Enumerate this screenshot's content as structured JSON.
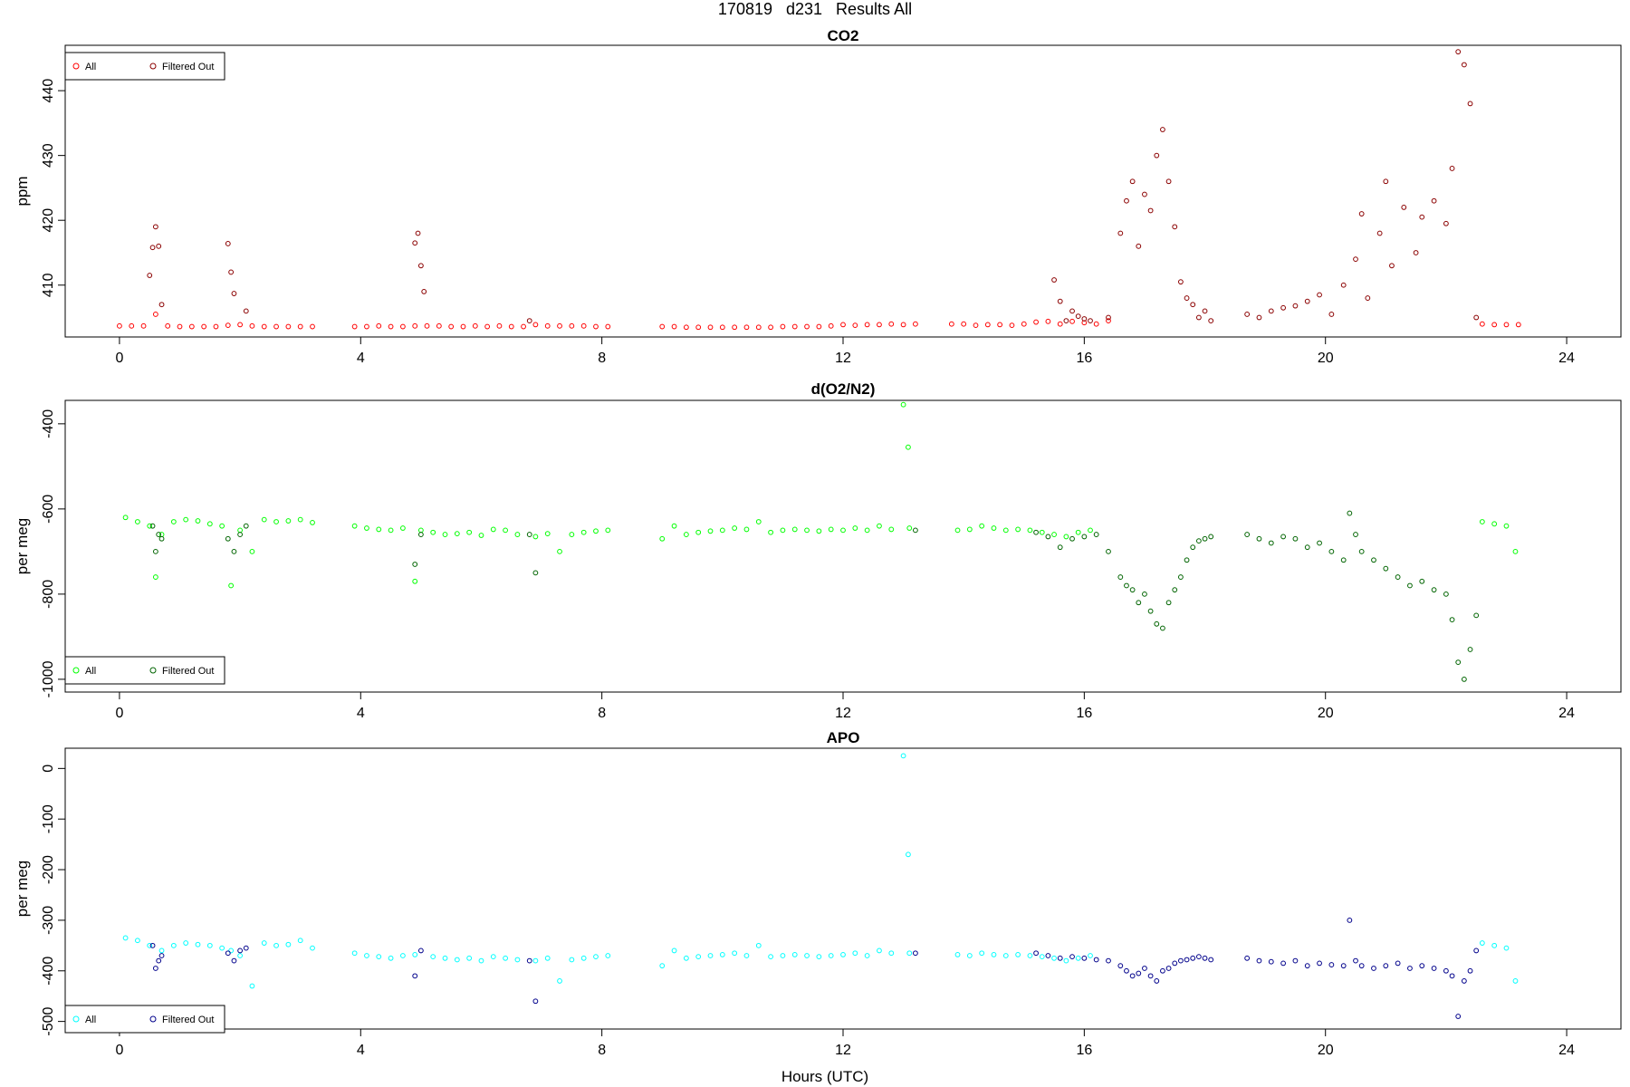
{
  "figure": {
    "title": "170819   d231   Results All",
    "xlabel": "Hours (UTC)"
  },
  "chart_data": [
    {
      "type": "scatter",
      "title": "CO2",
      "xlabel": "",
      "ylabel": "ppm",
      "xlim": [
        -0.9,
        24.9
      ],
      "ylim": [
        402,
        447
      ],
      "xticks": [
        0,
        4,
        8,
        12,
        16,
        20,
        24
      ],
      "yticks": [
        410,
        420,
        430,
        440
      ],
      "legend_position": "top-left",
      "legend": [
        {
          "label": "All",
          "color": "#ff0000"
        },
        {
          "label": "Filtered Out",
          "color": "#8b0000"
        }
      ],
      "series": [
        {
          "name": "All",
          "color": "#ff0000",
          "x": [
            0.0,
            0.2,
            0.4,
            0.6,
            0.8,
            1.0,
            1.2,
            1.4,
            1.6,
            1.8,
            2.0,
            2.2,
            2.4,
            2.6,
            2.8,
            3.0,
            3.2,
            3.9,
            4.1,
            4.3,
            4.5,
            4.7,
            4.9,
            5.1,
            5.3,
            5.5,
            5.7,
            5.9,
            6.1,
            6.3,
            6.5,
            6.7,
            6.9,
            7.1,
            7.3,
            7.5,
            7.7,
            7.9,
            8.1,
            9.0,
            9.2,
            9.4,
            9.6,
            9.8,
            10.0,
            10.2,
            10.4,
            10.6,
            10.8,
            11.0,
            11.2,
            11.4,
            11.6,
            11.8,
            12.0,
            12.2,
            12.4,
            12.6,
            12.8,
            13.0,
            13.2,
            13.8,
            14.0,
            14.2,
            14.4,
            14.6,
            14.8,
            15.0,
            15.2,
            15.4,
            15.6,
            15.8,
            16.0,
            16.2,
            16.4,
            22.6,
            22.8,
            23.0,
            23.2
          ],
          "values": [
            403.7,
            403.7,
            403.7,
            405.5,
            403.7,
            403.6,
            403.6,
            403.6,
            403.6,
            403.8,
            403.9,
            403.7,
            403.6,
            403.6,
            403.6,
            403.6,
            403.6,
            403.6,
            403.6,
            403.7,
            403.6,
            403.6,
            403.7,
            403.7,
            403.7,
            403.6,
            403.6,
            403.7,
            403.6,
            403.7,
            403.6,
            403.6,
            403.9,
            403.7,
            403.7,
            403.7,
            403.7,
            403.6,
            403.6,
            403.6,
            403.6,
            403.5,
            403.5,
            403.5,
            403.5,
            403.5,
            403.5,
            403.5,
            403.5,
            403.6,
            403.6,
            403.6,
            403.6,
            403.7,
            403.9,
            403.8,
            403.9,
            403.9,
            404.0,
            403.9,
            404.0,
            404.0,
            404.0,
            403.8,
            403.9,
            403.9,
            403.8,
            404.0,
            404.3,
            404.4,
            404.0,
            404.4,
            404.2,
            404.0,
            404.5,
            404.0,
            403.9,
            403.9,
            403.9
          ]
        },
        {
          "name": "Filtered Out",
          "color": "#8b0000",
          "x": [
            0.5,
            0.55,
            0.6,
            0.65,
            0.7,
            1.8,
            1.85,
            1.9,
            2.1,
            4.9,
            4.95,
            5.0,
            5.05,
            6.8,
            15.5,
            15.6,
            15.7,
            15.8,
            15.9,
            16.0,
            16.1,
            16.4,
            16.6,
            16.7,
            16.8,
            16.9,
            17.0,
            17.1,
            17.2,
            17.3,
            17.4,
            17.5,
            17.6,
            17.7,
            17.8,
            17.9,
            18.0,
            18.1,
            18.7,
            18.9,
            19.1,
            19.3,
            19.5,
            19.7,
            19.9,
            20.1,
            20.3,
            20.5,
            20.6,
            20.7,
            20.9,
            21.0,
            21.1,
            21.3,
            21.5,
            21.6,
            21.8,
            22.0,
            22.1,
            22.2,
            22.3,
            22.4,
            22.5
          ],
          "values": [
            411.5,
            415.8,
            419,
            416,
            407,
            416.4,
            412,
            408.7,
            406,
            416.5,
            418,
            413,
            409,
            404.5,
            410.8,
            407.5,
            404.5,
            406,
            405.2,
            404.8,
            404.5,
            405,
            418,
            423,
            426,
            416,
            424,
            421.5,
            430,
            434,
            426,
            419,
            410.5,
            408,
            407,
            405,
            406,
            404.5,
            405.5,
            405,
            406,
            406.5,
            406.8,
            407.5,
            408.5,
            405.5,
            410,
            414,
            421,
            408,
            418,
            426,
            413,
            422,
            415,
            420.5,
            423,
            419.5,
            428,
            446,
            444,
            438,
            405
          ]
        }
      ]
    },
    {
      "type": "scatter",
      "title": "d(O2/N2)",
      "xlabel": "",
      "ylabel": "per meg",
      "xlim": [
        -0.9,
        24.9
      ],
      "ylim": [
        -1030,
        -345
      ],
      "xticks": [
        0,
        4,
        8,
        12,
        16,
        20,
        24
      ],
      "yticks": [
        -1000,
        -800,
        -600,
        -400
      ],
      "legend_position": "bottom-left",
      "legend": [
        {
          "label": "All",
          "color": "#00ff00"
        },
        {
          "label": "Filtered Out",
          "color": "#006400"
        }
      ],
      "series": [
        {
          "name": "All",
          "color": "#00ff00",
          "x": [
            0.1,
            0.3,
            0.5,
            0.6,
            0.7,
            0.9,
            1.1,
            1.3,
            1.5,
            1.7,
            1.85,
            2.0,
            2.2,
            2.4,
            2.6,
            2.8,
            3.0,
            3.2,
            3.9,
            4.1,
            4.3,
            4.5,
            4.7,
            4.9,
            5.0,
            5.2,
            5.4,
            5.6,
            5.8,
            6.0,
            6.2,
            6.4,
            6.6,
            6.9,
            7.1,
            7.3,
            7.5,
            7.7,
            7.9,
            8.1,
            9.0,
            9.2,
            9.4,
            9.6,
            9.8,
            10.0,
            10.2,
            10.4,
            10.6,
            10.8,
            11.0,
            11.2,
            11.4,
            11.6,
            11.8,
            12.0,
            12.2,
            12.4,
            12.6,
            12.8,
            13.0,
            13.08,
            13.1,
            13.9,
            14.1,
            14.3,
            14.5,
            14.7,
            14.9,
            15.1,
            15.3,
            15.5,
            15.7,
            15.9,
            16.1,
            22.6,
            22.8,
            23.0,
            23.15
          ],
          "values": [
            -620,
            -630,
            -640,
            -760,
            -660,
            -630,
            -625,
            -628,
            -635,
            -640,
            -780,
            -650,
            -700,
            -625,
            -630,
            -628,
            -625,
            -632,
            -640,
            -645,
            -648,
            -650,
            -645,
            -770,
            -650,
            -655,
            -660,
            -658,
            -655,
            -662,
            -648,
            -650,
            -660,
            -665,
            -658,
            -700,
            -660,
            -655,
            -652,
            -650,
            -670,
            -640,
            -660,
            -655,
            -652,
            -650,
            -645,
            -648,
            -630,
            -655,
            -650,
            -648,
            -650,
            -652,
            -648,
            -650,
            -645,
            -650,
            -640,
            -648,
            -355,
            -455,
            -645,
            -650,
            -648,
            -640,
            -645,
            -650,
            -648,
            -650,
            -655,
            -660,
            -665,
            -655,
            -650,
            -630,
            -635,
            -640,
            -700
          ]
        },
        {
          "name": "Filtered Out",
          "color": "#006400",
          "x": [
            0.55,
            0.6,
            0.65,
            0.7,
            1.8,
            1.9,
            2.0,
            2.1,
            4.9,
            5.0,
            6.8,
            6.9,
            13.2,
            15.2,
            15.4,
            15.6,
            15.8,
            16.0,
            16.2,
            16.4,
            16.6,
            16.7,
            16.8,
            16.9,
            17.0,
            17.1,
            17.2,
            17.3,
            17.4,
            17.5,
            17.6,
            17.7,
            17.8,
            17.9,
            18.0,
            18.1,
            18.7,
            18.9,
            19.1,
            19.3,
            19.5,
            19.7,
            19.9,
            20.1,
            20.3,
            20.4,
            20.5,
            20.6,
            20.8,
            21.0,
            21.2,
            21.4,
            21.6,
            21.8,
            22.0,
            22.1,
            22.2,
            22.3,
            22.4,
            22.5
          ],
          "values": [
            -640,
            -700,
            -660,
            -670,
            -670,
            -700,
            -660,
            -640,
            -730,
            -660,
            -660,
            -750,
            -650,
            -655,
            -665,
            -690,
            -670,
            -665,
            -660,
            -700,
            -760,
            -780,
            -790,
            -820,
            -800,
            -840,
            -870,
            -880,
            -820,
            -790,
            -760,
            -720,
            -690,
            -675,
            -670,
            -665,
            -660,
            -670,
            -680,
            -665,
            -670,
            -690,
            -680,
            -700,
            -720,
            -610,
            -660,
            -700,
            -720,
            -740,
            -760,
            -780,
            -770,
            -790,
            -800,
            -860,
            -960,
            -1000,
            -930,
            -850
          ]
        }
      ]
    },
    {
      "type": "scatter",
      "title": "APO",
      "xlabel": "Hours (UTC)",
      "ylabel": "per meg",
      "xlim": [
        -0.9,
        24.9
      ],
      "ylim": [
        -515,
        40
      ],
      "xticks": [
        0,
        4,
        8,
        12,
        16,
        20,
        24
      ],
      "yticks": [
        -500,
        -400,
        -300,
        -200,
        -100,
        0
      ],
      "legend_position": "bottom-left",
      "legend": [
        {
          "label": "All",
          "color": "#00ffff"
        },
        {
          "label": "Filtered Out",
          "color": "#00008b"
        }
      ],
      "series": [
        {
          "name": "All",
          "color": "#00ffff",
          "x": [
            0.1,
            0.3,
            0.5,
            0.7,
            0.9,
            1.1,
            1.3,
            1.5,
            1.7,
            1.85,
            2.0,
            2.2,
            2.4,
            2.6,
            2.8,
            3.0,
            3.2,
            3.9,
            4.1,
            4.3,
            4.5,
            4.7,
            4.9,
            5.2,
            5.4,
            5.6,
            5.8,
            6.0,
            6.2,
            6.4,
            6.6,
            6.9,
            7.1,
            7.3,
            7.5,
            7.7,
            7.9,
            8.1,
            9.0,
            9.2,
            9.4,
            9.6,
            9.8,
            10.0,
            10.2,
            10.4,
            10.6,
            10.8,
            11.0,
            11.2,
            11.4,
            11.6,
            11.8,
            12.0,
            12.2,
            12.4,
            12.6,
            12.8,
            13.0,
            13.08,
            13.1,
            13.9,
            14.1,
            14.3,
            14.5,
            14.7,
            14.9,
            15.1,
            15.3,
            15.5,
            15.7,
            15.9,
            16.1,
            22.6,
            22.8,
            23.0,
            23.15
          ],
          "values": [
            -335,
            -340,
            -350,
            -360,
            -350,
            -345,
            -348,
            -350,
            -355,
            -360,
            -370,
            -430,
            -345,
            -350,
            -348,
            -340,
            -355,
            -365,
            -370,
            -372,
            -375,
            -370,
            -368,
            -372,
            -375,
            -378,
            -375,
            -380,
            -372,
            -375,
            -378,
            -380,
            -375,
            -420,
            -378,
            -375,
            -372,
            -370,
            -390,
            -360,
            -375,
            -372,
            -370,
            -368,
            -365,
            -370,
            -350,
            -372,
            -370,
            -368,
            -370,
            -372,
            -370,
            -368,
            -365,
            -370,
            -360,
            -365,
            25,
            -170,
            -365,
            -368,
            -370,
            -365,
            -368,
            -370,
            -368,
            -370,
            -372,
            -375,
            -380,
            -375,
            -370,
            -345,
            -350,
            -355,
            -420
          ]
        },
        {
          "name": "Filtered Out",
          "color": "#00008b",
          "x": [
            0.55,
            0.6,
            0.65,
            0.7,
            1.8,
            1.9,
            2.0,
            2.1,
            4.9,
            5.0,
            6.8,
            6.9,
            13.2,
            15.2,
            15.4,
            15.6,
            15.8,
            16.0,
            16.2,
            16.4,
            16.6,
            16.7,
            16.8,
            16.9,
            17.0,
            17.1,
            17.2,
            17.3,
            17.4,
            17.5,
            17.6,
            17.7,
            17.8,
            17.9,
            18.0,
            18.1,
            18.7,
            18.9,
            19.1,
            19.3,
            19.5,
            19.7,
            19.9,
            20.1,
            20.3,
            20.4,
            20.5,
            20.6,
            20.8,
            21.0,
            21.2,
            21.4,
            21.6,
            21.8,
            22.0,
            22.1,
            22.2,
            22.3,
            22.4,
            22.5
          ],
          "values": [
            -350,
            -395,
            -380,
            -370,
            -365,
            -380,
            -360,
            -355,
            -410,
            -360,
            -380,
            -460,
            -365,
            -365,
            -370,
            -375,
            -372,
            -375,
            -378,
            -380,
            -390,
            -400,
            -410,
            -405,
            -395,
            -410,
            -420,
            -400,
            -395,
            -385,
            -380,
            -378,
            -375,
            -372,
            -375,
            -378,
            -375,
            -380,
            -382,
            -385,
            -380,
            -390,
            -385,
            -388,
            -390,
            -300,
            -380,
            -390,
            -395,
            -390,
            -385,
            -395,
            -390,
            -395,
            -400,
            -410,
            -490,
            -420,
            -400,
            -360
          ]
        }
      ]
    }
  ]
}
